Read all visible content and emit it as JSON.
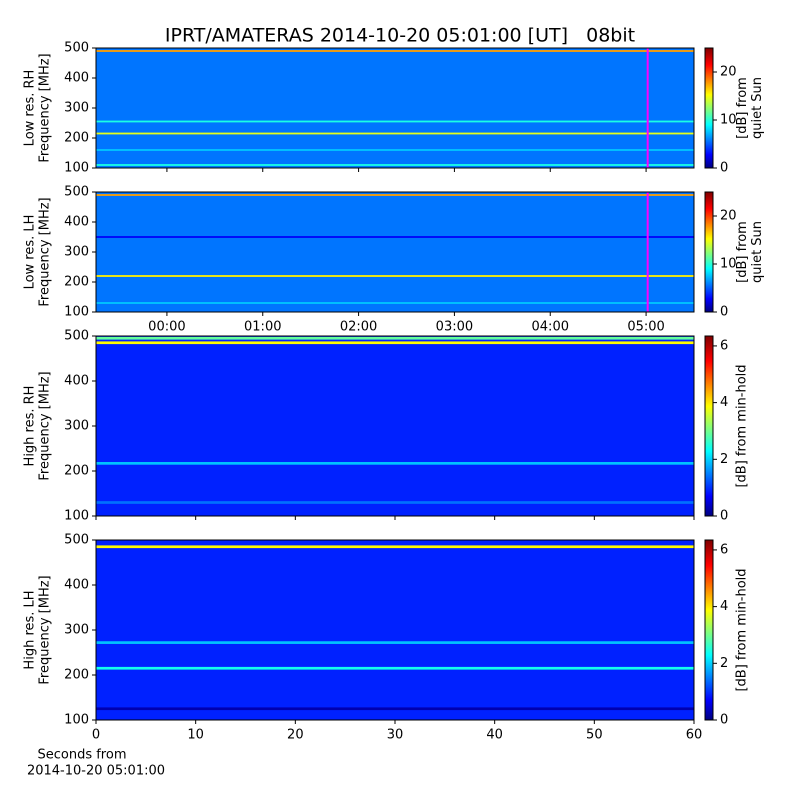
{
  "chart_data": [
    {
      "type": "heatmap",
      "title": "IPRT/AMATERAS 2014-10-20 05:01:00 [UT]   08bit",
      "ylabel": [
        "Low res. RH",
        "Frequency [MHz]"
      ],
      "cbar_label": [
        "[dB] from",
        "quiet Sun"
      ],
      "xlim": [
        -0.74,
        5.5
      ],
      "xticks": [
        0,
        1,
        2,
        3,
        4,
        5
      ],
      "ylim": [
        100,
        500
      ],
      "yticks": [
        100,
        200,
        300,
        400,
        500
      ],
      "clim": [
        0,
        25
      ],
      "cticks": [
        0,
        10,
        20
      ],
      "base_level": 6,
      "band_freqs": [
        490,
        255,
        215,
        160,
        110
      ],
      "band_levels": [
        18,
        10,
        15,
        8,
        10
      ],
      "marker_x": 5.0167,
      "marker_color": "#ff00ff"
    },
    {
      "type": "heatmap",
      "ylabel": [
        "Low res. LH",
        "Frequency [MHz]"
      ],
      "cbar_label": [
        "[dB] from",
        "quiet Sun"
      ],
      "xlim": [
        -0.74,
        5.5
      ],
      "xticks": [
        {
          "value": 0,
          "label": "00:00"
        },
        {
          "value": 1,
          "label": "01:00"
        },
        {
          "value": 2,
          "label": "02:00"
        },
        {
          "value": 3,
          "label": "03:00"
        },
        {
          "value": 4,
          "label": "04:00"
        },
        {
          "value": 5,
          "label": "05:00"
        }
      ],
      "ylim": [
        100,
        500
      ],
      "yticks": [
        100,
        200,
        300,
        400,
        500
      ],
      "clim": [
        0,
        25
      ],
      "cticks": [
        0,
        10,
        20
      ],
      "base_level": 6,
      "band_freqs": [
        490,
        350,
        220,
        130
      ],
      "band_levels": [
        18,
        3,
        16,
        8
      ],
      "marker_x": 5.0167,
      "marker_color": "#ff00ff"
    },
    {
      "type": "heatmap",
      "ylabel": [
        "High res. RH",
        "Frequency [MHz]"
      ],
      "cbar_label": [
        "[dB] from min-hold"
      ],
      "xlim": [
        0,
        60
      ],
      "xticks": [
        0,
        10,
        20,
        30,
        40,
        50,
        60
      ],
      "ylim": [
        100,
        500
      ],
      "yticks": [
        100,
        200,
        300,
        400,
        500
      ],
      "clim": [
        0,
        6.35
      ],
      "cticks": [
        0,
        2,
        4,
        6
      ],
      "base_level": 1,
      "band_freqs": [
        495,
        485,
        217,
        130
      ],
      "band_levels": [
        3,
        4,
        2,
        1.5
      ]
    },
    {
      "type": "heatmap",
      "ylabel": [
        "High res. LH",
        "Frequency [MHz]"
      ],
      "cbar_label": [
        "[dB] from min-hold"
      ],
      "xlabel": [
        "Seconds from",
        "2014-10-20 05:01:00"
      ],
      "xlim": [
        0,
        60
      ],
      "xticks": [
        0,
        10,
        20,
        30,
        40,
        50,
        60
      ],
      "ylim": [
        100,
        500
      ],
      "yticks": [
        100,
        200,
        300,
        400,
        500
      ],
      "clim": [
        0,
        6.35
      ],
      "cticks": [
        0,
        2,
        4,
        6
      ],
      "base_level": 1,
      "band_freqs": [
        485,
        272,
        215,
        125
      ],
      "band_levels": [
        4,
        2,
        2.5,
        0.3
      ]
    }
  ]
}
